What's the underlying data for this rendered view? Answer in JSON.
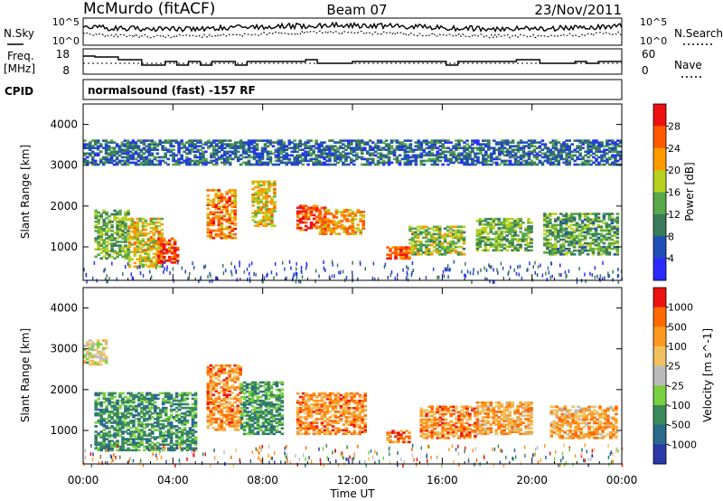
{
  "header": {
    "title": "McMurdo (fitACF)",
    "beam": "Beam 07",
    "date": "23/Nov/2011"
  },
  "noise_panel": {
    "left_label": "N.Sky",
    "right_label": "N.Search",
    "left_ticks": [
      "10^5",
      "10^0"
    ],
    "right_ticks": [
      "10^5",
      "10^0"
    ]
  },
  "freq_panel": {
    "left_label_line1": "Freq.",
    "left_label_line2": "[MHz]",
    "left_ticks": [
      "18",
      "8"
    ],
    "right_ticks": [
      "60",
      "0"
    ],
    "right_label": "Nave"
  },
  "cpid": {
    "label": "CPID",
    "value": "normalsound (fast) -157 RF"
  },
  "chart_data": [
    {
      "type": "heatmap",
      "name": "power",
      "ylabel": "Slant Range [km]",
      "ylim": [
        180,
        4500
      ],
      "yticks": [
        "4000",
        "3000",
        "2000",
        "1000"
      ],
      "colorbar_label": "Power [dB]",
      "colorbar_ticks": [
        "28",
        "24",
        "20",
        "16",
        "12",
        "8",
        "4"
      ],
      "colors": [
        "#2a2aff",
        "#1e4fb8",
        "#3a7a5a",
        "#58a84a",
        "#b8d020",
        "#ff9a00",
        "#ff5a00",
        "#ee1111"
      ],
      "echo_regions": [
        {
          "t": [
            0.5,
            2.0
          ],
          "r": [
            700,
            1900
          ],
          "level": 0.45
        },
        {
          "t": [
            2.0,
            3.5
          ],
          "r": [
            500,
            1700
          ],
          "level": 0.6
        },
        {
          "t": [
            3.3,
            4.2
          ],
          "r": [
            600,
            1200
          ],
          "level": 0.9
        },
        {
          "t": [
            5.5,
            6.8
          ],
          "r": [
            1200,
            2400
          ],
          "level": 0.75
        },
        {
          "t": [
            7.5,
            8.5
          ],
          "r": [
            1500,
            2600
          ],
          "level": 0.6
        },
        {
          "t": [
            9.5,
            10.8
          ],
          "r": [
            1400,
            2000
          ],
          "level": 0.85
        },
        {
          "t": [
            10.5,
            12.5
          ],
          "r": [
            1300,
            1900
          ],
          "level": 0.7
        },
        {
          "t": [
            13.5,
            14.5
          ],
          "r": [
            700,
            1000
          ],
          "level": 0.8
        },
        {
          "t": [
            14.5,
            17.0
          ],
          "r": [
            800,
            1500
          ],
          "level": 0.5
        },
        {
          "t": [
            17.5,
            20.0
          ],
          "r": [
            900,
            1700
          ],
          "level": 0.45
        },
        {
          "t": [
            20.5,
            23.8
          ],
          "r": [
            800,
            1800
          ],
          "level": 0.4
        },
        {
          "t": [
            0.0,
            24.0
          ],
          "r": [
            3000,
            3600
          ],
          "level": 0.25
        }
      ]
    },
    {
      "type": "heatmap",
      "name": "velocity",
      "xlabel": "Time UT",
      "ylabel": "Slant Range [km]",
      "ylim": [
        180,
        4500
      ],
      "yticks": [
        "4000",
        "3000",
        "2000",
        "1000"
      ],
      "xticks": [
        "00:00",
        "04:00",
        "08:00",
        "12:00",
        "16:00",
        "20:00",
        "00:00"
      ],
      "xlim": [
        0,
        24
      ],
      "colorbar_label": "Velocity [m s^-1]",
      "colorbar_ticks": [
        "1000",
        "500",
        "100",
        "25",
        "-25",
        "-100",
        "-500",
        "-1000"
      ],
      "colors": [
        "#2a3aa8",
        "#2a6a8a",
        "#3a8a5a",
        "#7ad040",
        "#bbbbbb",
        "#f0c060",
        "#ff9a20",
        "#ff6a00",
        "#ee1111"
      ],
      "echo_regions": [
        {
          "t": [
            0.5,
            5.0
          ],
          "r": [
            500,
            1900
          ],
          "level": 0.2
        },
        {
          "t": [
            5.5,
            7.0
          ],
          "r": [
            1000,
            2600
          ],
          "level": 0.75
        },
        {
          "t": [
            7.0,
            8.8
          ],
          "r": [
            900,
            2200
          ],
          "level": 0.2
        },
        {
          "t": [
            9.5,
            12.5
          ],
          "r": [
            900,
            1900
          ],
          "level": 0.75
        },
        {
          "t": [
            13.5,
            14.5
          ],
          "r": [
            700,
            1000
          ],
          "level": 0.8
        },
        {
          "t": [
            15.0,
            17.5
          ],
          "r": [
            800,
            1600
          ],
          "level": 0.75
        },
        {
          "t": [
            17.5,
            20.0
          ],
          "r": [
            900,
            1700
          ],
          "level": 0.7
        },
        {
          "t": [
            20.8,
            23.8
          ],
          "r": [
            800,
            1600
          ],
          "level": 0.7
        },
        {
          "t": [
            0.0,
            1.0
          ],
          "r": [
            2600,
            3200
          ],
          "level": 0.5
        }
      ]
    }
  ]
}
